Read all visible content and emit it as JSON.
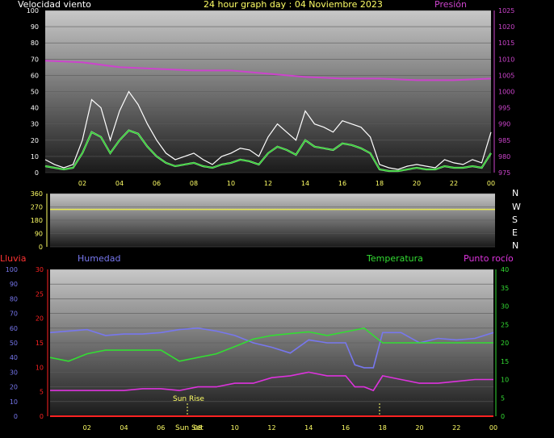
{
  "header": {
    "wind_label": "Velocidad viento",
    "title": "24 hour graph day : 04 Noviembre 2023",
    "pressure_label": "Presión"
  },
  "direction_letters": [
    "N",
    "W",
    "S",
    "E",
    "N"
  ],
  "bottom_labels": {
    "rain": "Lluvia",
    "humidity": "Humedad",
    "temperature": "Temperatura",
    "dewpoint": "Punto rocío"
  },
  "annotations": {
    "sunrise": "Sun Rise",
    "sunset": "Sun Set"
  },
  "colors": {
    "wind_gust": "#ffffff",
    "wind_avg": "#33cc33",
    "wind_light": "#aaffaa",
    "pressure": "#cc44cc",
    "direction": "#e8e855",
    "humidity": "#7777ee",
    "temperature": "#33dd33",
    "dewpoint": "#dd33dd",
    "rain": "#ff2222",
    "axis_white": "#ffffff",
    "axis_yellow": "#ffff66"
  },
  "chart_data": [
    {
      "type": "line",
      "title": "24 hour graph day : 04 Noviembre 2023",
      "x_tick_labels": [
        "02",
        "04",
        "06",
        "08",
        "10",
        "12",
        "14",
        "16",
        "18",
        "20",
        "22",
        "00"
      ],
      "xlim": [
        0,
        24
      ],
      "ylim_left": [
        0,
        100
      ],
      "yticks_left": [
        "0",
        "10",
        "20",
        "30",
        "40",
        "50",
        "60",
        "70",
        "80",
        "90",
        "100"
      ],
      "ylim_right": [
        975,
        1025
      ],
      "yticks_right": [
        "975",
        "980",
        "985",
        "990",
        "995",
        "1000",
        "1005",
        "1010",
        "1015",
        "1020",
        "1025"
      ],
      "series": [
        {
          "name": "Velocidad viento",
          "axis": "left",
          "style": "gust",
          "x": [
            0,
            0.5,
            1,
            1.5,
            2,
            2.5,
            3,
            3.5,
            4,
            4.5,
            5,
            5.5,
            6,
            6.5,
            7,
            7.5,
            8,
            8.5,
            9,
            9.5,
            10,
            10.5,
            11,
            11.5,
            12,
            12.5,
            13,
            13.5,
            14,
            14.5,
            15,
            15.5,
            16,
            16.5,
            17,
            17.5,
            18,
            18.5,
            19,
            19.5,
            20,
            20.5,
            21,
            21.5,
            22,
            22.5,
            23,
            23.5,
            24
          ],
          "y": [
            8,
            5,
            3,
            5,
            20,
            45,
            40,
            20,
            38,
            50,
            42,
            30,
            20,
            12,
            8,
            10,
            12,
            8,
            5,
            10,
            12,
            15,
            14,
            10,
            22,
            30,
            25,
            20,
            38,
            30,
            28,
            25,
            32,
            30,
            28,
            22,
            5,
            3,
            2,
            4,
            5,
            4,
            3,
            8,
            6,
            5,
            8,
            6,
            25
          ]
        },
        {
          "name": "",
          "axis": "left",
          "style": "avg",
          "x": [
            0,
            0.5,
            1,
            1.5,
            2,
            2.5,
            3,
            3.5,
            4,
            4.5,
            5,
            5.5,
            6,
            6.5,
            7,
            7.5,
            8,
            8.5,
            9,
            9.5,
            10,
            10.5,
            11,
            11.5,
            12,
            12.5,
            13,
            13.5,
            14,
            14.5,
            15,
            15.5,
            16,
            16.5,
            17,
            17.5,
            18,
            18.5,
            19,
            19.5,
            20,
            20.5,
            21,
            21.5,
            22,
            22.5,
            23,
            23.5,
            24
          ],
          "y": [
            4,
            3,
            2,
            3,
            12,
            25,
            22,
            12,
            20,
            26,
            24,
            16,
            10,
            6,
            4,
            5,
            6,
            4,
            3,
            5,
            6,
            8,
            7,
            5,
            12,
            16,
            14,
            11,
            20,
            16,
            15,
            14,
            18,
            17,
            15,
            12,
            2,
            1,
            1,
            2,
            3,
            2,
            2,
            4,
            3,
            3,
            4,
            3,
            12
          ]
        },
        {
          "name": "Presión",
          "axis": "right",
          "style": "pressure",
          "x": [
            0,
            2,
            4,
            6,
            8,
            10,
            12,
            14,
            16,
            18,
            20,
            22,
            24
          ],
          "y": [
            1009.5,
            1009,
            1007.5,
            1007,
            1006.5,
            1006.5,
            1005.5,
            1004.5,
            1004,
            1004,
            1003.5,
            1003.5,
            1004
          ]
        }
      ]
    },
    {
      "type": "line",
      "title": "",
      "x_tick_labels": [],
      "xlim": [
        0,
        24
      ],
      "ylim": [
        0,
        360
      ],
      "yticks": [
        "0",
        "90",
        "180",
        "270",
        "360"
      ],
      "series": [
        {
          "name": "",
          "x": [
            0,
            24
          ],
          "y": [
            253,
            253
          ]
        }
      ]
    },
    {
      "type": "line",
      "title": "",
      "x_tick_labels": [
        "02",
        "04",
        "06",
        "08",
        "10",
        "12",
        "14",
        "16",
        "18",
        "20",
        "22",
        "00"
      ],
      "xlim": [
        0,
        24
      ],
      "ylim_humidity": [
        0,
        100
      ],
      "yticks_humidity": [
        "0",
        "10",
        "20",
        "30",
        "40",
        "50",
        "60",
        "70",
        "80",
        "90",
        "100"
      ],
      "ylim_rain": [
        0,
        30
      ],
      "yticks_rain": [
        "0",
        "5",
        "10",
        "15",
        "20",
        "25",
        "30"
      ],
      "ylim_temp": [
        0,
        40
      ],
      "yticks_temp": [
        "0",
        "5",
        "10",
        "15",
        "20",
        "25",
        "30",
        "35",
        "40"
      ],
      "series": [
        {
          "name": "Lluvia",
          "axis": "rain",
          "x": [
            0,
            24
          ],
          "y": [
            0,
            0
          ]
        },
        {
          "name": "Humedad",
          "axis": "humidity",
          "x": [
            0,
            1,
            2,
            3,
            4,
            5,
            6,
            7,
            8,
            9,
            10,
            11,
            12,
            13,
            14,
            15,
            16,
            16.5,
            17,
            17.5,
            18,
            19,
            20,
            21,
            22,
            23,
            24
          ],
          "y": [
            57,
            58,
            59,
            55,
            56,
            56,
            57,
            59,
            60,
            58,
            55,
            50,
            47,
            43,
            52,
            50,
            50,
            35,
            33,
            33,
            57,
            57,
            50,
            53,
            52,
            53,
            57
          ]
        },
        {
          "name": "Temperatura",
          "axis": "temp",
          "x": [
            0,
            1,
            2,
            3,
            4,
            5,
            6,
            7,
            8,
            9,
            10,
            11,
            12,
            13,
            14,
            15,
            16,
            17,
            18,
            19,
            20,
            21,
            22,
            23,
            24
          ],
          "y": [
            16,
            15,
            17,
            18,
            18,
            18,
            18,
            15,
            16,
            17,
            19,
            21,
            22,
            22.5,
            23,
            22,
            23,
            24,
            20,
            20,
            20,
            20,
            20,
            20,
            20
          ]
        },
        {
          "name": "Punto rocío",
          "axis": "temp",
          "x": [
            0,
            1,
            2,
            3,
            4,
            5,
            6,
            7,
            8,
            9,
            10,
            11,
            12,
            13,
            14,
            15,
            16,
            16.5,
            17,
            17.5,
            18,
            19,
            20,
            21,
            22,
            23,
            24
          ],
          "y": [
            7,
            7,
            7,
            7,
            7,
            7.5,
            7.5,
            7,
            8,
            8,
            9,
            9,
            10.5,
            11,
            12,
            11,
            11,
            8,
            8,
            7,
            11,
            10,
            9,
            9,
            9.5,
            10,
            10
          ]
        }
      ]
    }
  ]
}
